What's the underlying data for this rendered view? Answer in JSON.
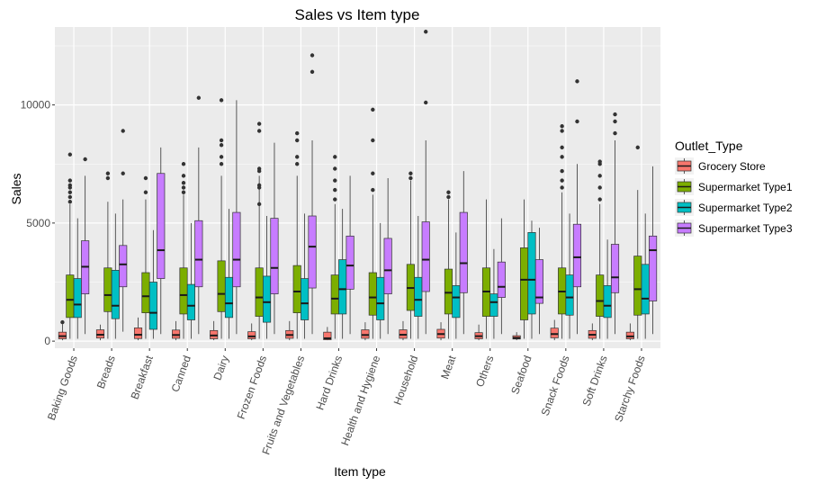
{
  "chart_data": {
    "type": "boxplot",
    "title": "Sales vs Item type",
    "xlabel": "Item type",
    "ylabel": "Sales",
    "ylim": [
      -300,
      13300
    ],
    "y_ticks": [
      0,
      5000,
      10000
    ],
    "categories": [
      "Baking Goods",
      "Breads",
      "Breakfast",
      "Canned",
      "Dairy",
      "Frozen Foods",
      "Fruits and Vegetables",
      "Hard Drinks",
      "Health and Hygiene",
      "Household",
      "Meat",
      "Others",
      "Seafood",
      "Snack Foods",
      "Soft Drinks",
      "Starchy Foods"
    ],
    "legend": {
      "title": "Outlet_Type",
      "position": "right"
    },
    "grid": true,
    "series": [
      {
        "name": "Grocery Store",
        "color": "#F8766D",
        "boxes": [
          {
            "whisker_low": 40,
            "q1": 100,
            "median": 210,
            "q3": 380,
            "whisker_high": 720,
            "outliers": [
              800
            ]
          },
          {
            "whisker_low": 40,
            "q1": 130,
            "median": 270,
            "q3": 480,
            "whisker_high": 700,
            "outliers": []
          },
          {
            "whisker_low": 40,
            "q1": 110,
            "median": 270,
            "q3": 560,
            "whisker_high": 1000,
            "outliers": []
          },
          {
            "whisker_low": 40,
            "q1": 120,
            "median": 260,
            "q3": 470,
            "whisker_high": 850,
            "outliers": []
          },
          {
            "whisker_low": 40,
            "q1": 100,
            "median": 240,
            "q3": 450,
            "whisker_high": 850,
            "outliers": []
          },
          {
            "whisker_low": 40,
            "q1": 100,
            "median": 200,
            "q3": 400,
            "whisker_high": 750,
            "outliers": []
          },
          {
            "whisker_low": 40,
            "q1": 120,
            "median": 260,
            "q3": 450,
            "whisker_high": 850,
            "outliers": []
          },
          {
            "whisker_low": 40,
            "q1": 60,
            "median": 120,
            "q3": 380,
            "whisker_high": 600,
            "outliers": []
          },
          {
            "whisker_low": 40,
            "q1": 120,
            "median": 260,
            "q3": 480,
            "whisker_high": 800,
            "outliers": []
          },
          {
            "whisker_low": 40,
            "q1": 120,
            "median": 270,
            "q3": 480,
            "whisker_high": 850,
            "outliers": []
          },
          {
            "whisker_low": 40,
            "q1": 130,
            "median": 300,
            "q3": 500,
            "whisker_high": 800,
            "outliers": []
          },
          {
            "whisker_low": 40,
            "q1": 100,
            "median": 210,
            "q3": 360,
            "whisker_high": 700,
            "outliers": []
          },
          {
            "whisker_low": 40,
            "q1": 90,
            "median": 140,
            "q3": 230,
            "whisker_high": 380,
            "outliers": []
          },
          {
            "whisker_low": 40,
            "q1": 140,
            "median": 300,
            "q3": 550,
            "whisker_high": 900,
            "outliers": []
          },
          {
            "whisker_low": 40,
            "q1": 120,
            "median": 270,
            "q3": 450,
            "whisker_high": 750,
            "outliers": []
          },
          {
            "whisker_low": 40,
            "q1": 100,
            "median": 200,
            "q3": 380,
            "whisker_high": 750,
            "outliers": []
          }
        ]
      },
      {
        "name": "Supermarket Type1",
        "color": "#7CAE00",
        "boxes": [
          {
            "whisker_low": 100,
            "q1": 1000,
            "median": 1750,
            "q3": 2800,
            "whisker_high": 5800,
            "outliers": [
              5900,
              6100,
              6300,
              6500,
              6600,
              6800,
              7900
            ]
          },
          {
            "whisker_low": 100,
            "q1": 1250,
            "median": 1950,
            "q3": 3100,
            "whisker_high": 5900,
            "outliers": [
              6900,
              7100
            ]
          },
          {
            "whisker_low": 100,
            "q1": 1200,
            "median": 1900,
            "q3": 2900,
            "whisker_high": 6000,
            "outliers": [
              6300,
              6900
            ]
          },
          {
            "whisker_low": 100,
            "q1": 1150,
            "median": 1950,
            "q3": 3100,
            "whisker_high": 6200,
            "outliers": [
              6300,
              6500,
              6700,
              7000,
              7500
            ]
          },
          {
            "whisker_low": 100,
            "q1": 1250,
            "median": 2000,
            "q3": 3400,
            "whisker_high": 7000,
            "outliers": [
              7500,
              7800,
              8300,
              8500,
              10200
            ]
          },
          {
            "whisker_low": 100,
            "q1": 1050,
            "median": 1850,
            "q3": 3100,
            "whisker_high": 7000,
            "outliers": [
              5800,
              6500,
              6600,
              7200,
              7300,
              8900,
              9200
            ]
          },
          {
            "whisker_low": 100,
            "q1": 1200,
            "median": 2100,
            "q3": 3200,
            "whisker_high": 7000,
            "outliers": [
              7500,
              7800,
              8500,
              8800
            ]
          },
          {
            "whisker_low": 100,
            "q1": 1150,
            "median": 1800,
            "q3": 2800,
            "whisker_high": 5800,
            "outliers": [
              6000,
              6400,
              6800,
              7300,
              7800
            ]
          },
          {
            "whisker_low": 100,
            "q1": 1100,
            "median": 1850,
            "q3": 2900,
            "whisker_high": 6200,
            "outliers": [
              6400,
              7100,
              8500,
              9800
            ]
          },
          {
            "whisker_low": 100,
            "q1": 1300,
            "median": 2250,
            "q3": 3250,
            "whisker_high": 6800,
            "outliers": [
              6900,
              7100
            ]
          },
          {
            "whisker_low": 100,
            "q1": 1150,
            "median": 2050,
            "q3": 3050,
            "whisker_high": 6000,
            "outliers": [
              6100,
              6300
            ]
          },
          {
            "whisker_low": 100,
            "q1": 1050,
            "median": 2100,
            "q3": 3100,
            "whisker_high": 6000,
            "outliers": []
          },
          {
            "whisker_low": 100,
            "q1": 900,
            "median": 2600,
            "q3": 3950,
            "whisker_high": 6000,
            "outliers": []
          },
          {
            "whisker_low": 100,
            "q1": 1150,
            "median": 2100,
            "q3": 3100,
            "whisker_high": 6300,
            "outliers": [
              6500,
              6800,
              7200,
              7800,
              8200,
              8900,
              9100
            ]
          },
          {
            "whisker_low": 100,
            "q1": 1050,
            "median": 1700,
            "q3": 2800,
            "whisker_high": 5800,
            "outliers": [
              6000,
              6500,
              7000,
              7500,
              7600
            ]
          },
          {
            "whisker_low": 100,
            "q1": 1100,
            "median": 2200,
            "q3": 3600,
            "whisker_high": 6400,
            "outliers": [
              8200
            ]
          }
        ]
      },
      {
        "name": "Supermarket Type2",
        "color": "#00BFC4",
        "boxes": [
          {
            "whisker_low": 100,
            "q1": 1000,
            "median": 1550,
            "q3": 2650,
            "whisker_high": 5200,
            "outliers": []
          },
          {
            "whisker_low": 100,
            "q1": 950,
            "median": 1500,
            "q3": 3000,
            "whisker_high": 5400,
            "outliers": []
          },
          {
            "whisker_low": 100,
            "q1": 500,
            "median": 1200,
            "q3": 2500,
            "whisker_high": 4700,
            "outliers": []
          },
          {
            "whisker_low": 100,
            "q1": 900,
            "median": 1500,
            "q3": 2400,
            "whisker_high": 5000,
            "outliers": []
          },
          {
            "whisker_low": 100,
            "q1": 1000,
            "median": 1600,
            "q3": 2700,
            "whisker_high": 5600,
            "outliers": []
          },
          {
            "whisker_low": 100,
            "q1": 800,
            "median": 1650,
            "q3": 2750,
            "whisker_high": 5300,
            "outliers": []
          },
          {
            "whisker_low": 100,
            "q1": 900,
            "median": 1600,
            "q3": 2650,
            "whisker_high": 5400,
            "outliers": []
          },
          {
            "whisker_low": 100,
            "q1": 1150,
            "median": 2200,
            "q3": 3450,
            "whisker_high": 5600,
            "outliers": []
          },
          {
            "whisker_low": 100,
            "q1": 900,
            "median": 1600,
            "q3": 2700,
            "whisker_high": 5000,
            "outliers": []
          },
          {
            "whisker_low": 100,
            "q1": 1050,
            "median": 1750,
            "q3": 2700,
            "whisker_high": 5300,
            "outliers": []
          },
          {
            "whisker_low": 100,
            "q1": 1000,
            "median": 1850,
            "q3": 2350,
            "whisker_high": 4600,
            "outliers": []
          },
          {
            "whisker_low": 100,
            "q1": 1050,
            "median": 1650,
            "q3": 2000,
            "whisker_high": 3900,
            "outliers": []
          },
          {
            "whisker_low": 100,
            "q1": 1150,
            "median": 2600,
            "q3": 4600,
            "whisker_high": 5100,
            "outliers": []
          },
          {
            "whisker_low": 100,
            "q1": 1100,
            "median": 1850,
            "q3": 2800,
            "whisker_high": 5400,
            "outliers": []
          },
          {
            "whisker_low": 100,
            "q1": 1000,
            "median": 1500,
            "q3": 2350,
            "whisker_high": 4300,
            "outliers": []
          },
          {
            "whisker_low": 100,
            "q1": 1150,
            "median": 1800,
            "q3": 3250,
            "whisker_high": 5400,
            "outliers": []
          }
        ]
      },
      {
        "name": "Supermarket Type3",
        "color": "#C77CFF",
        "boxes": [
          {
            "whisker_low": 300,
            "q1": 2000,
            "median": 3150,
            "q3": 4250,
            "whisker_high": 7000,
            "outliers": [
              7700
            ]
          },
          {
            "whisker_low": 400,
            "q1": 2300,
            "median": 3250,
            "q3": 4050,
            "whisker_high": 6000,
            "outliers": [
              7100,
              8900
            ]
          },
          {
            "whisker_low": 300,
            "q1": 2650,
            "median": 3850,
            "q3": 7100,
            "whisker_high": 8200,
            "outliers": []
          },
          {
            "whisker_low": 300,
            "q1": 2300,
            "median": 3450,
            "q3": 5100,
            "whisker_high": 8200,
            "outliers": [
              10300
            ]
          },
          {
            "whisker_low": 300,
            "q1": 2300,
            "median": 3450,
            "q3": 5450,
            "whisker_high": 10200,
            "outliers": []
          },
          {
            "whisker_low": 300,
            "q1": 2000,
            "median": 3100,
            "q3": 5200,
            "whisker_high": 8400,
            "outliers": []
          },
          {
            "whisker_low": 300,
            "q1": 2250,
            "median": 4000,
            "q3": 5300,
            "whisker_high": 8500,
            "outliers": [
              11400,
              12100
            ]
          },
          {
            "whisker_low": 300,
            "q1": 2200,
            "median": 3200,
            "q3": 4450,
            "whisker_high": 7000,
            "outliers": []
          },
          {
            "whisker_low": 300,
            "q1": 2000,
            "median": 3000,
            "q3": 4350,
            "whisker_high": 6900,
            "outliers": []
          },
          {
            "whisker_low": 300,
            "q1": 2100,
            "median": 3450,
            "q3": 5050,
            "whisker_high": 8500,
            "outliers": [
              10100,
              13100
            ]
          },
          {
            "whisker_low": 300,
            "q1": 2050,
            "median": 3300,
            "q3": 5450,
            "whisker_high": 7200,
            "outliers": []
          },
          {
            "whisker_low": 300,
            "q1": 1850,
            "median": 2300,
            "q3": 3350,
            "whisker_high": 5200,
            "outliers": []
          },
          {
            "whisker_low": 300,
            "q1": 1600,
            "median": 1850,
            "q3": 3450,
            "whisker_high": 4800,
            "outliers": []
          },
          {
            "whisker_low": 300,
            "q1": 2300,
            "median": 3550,
            "q3": 4950,
            "whisker_high": 7500,
            "outliers": [
              9300,
              11000
            ]
          },
          {
            "whisker_low": 300,
            "q1": 2050,
            "median": 2700,
            "q3": 4100,
            "whisker_high": 8500,
            "outliers": [
              8800,
              9300,
              9600
            ]
          },
          {
            "whisker_low": 300,
            "q1": 1700,
            "median": 3850,
            "q3": 4450,
            "whisker_high": 7400,
            "outliers": []
          }
        ]
      }
    ]
  }
}
